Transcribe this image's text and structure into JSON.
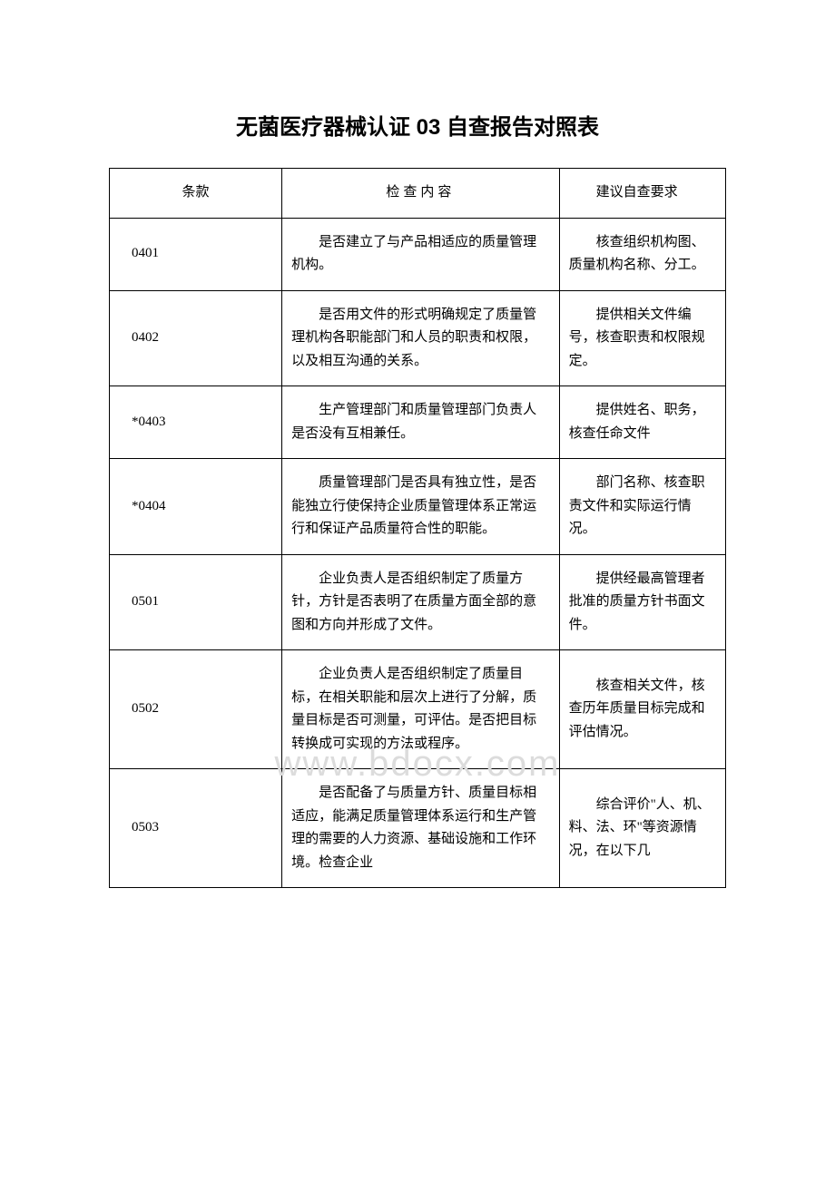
{
  "title": "无菌医疗器械认证 03 自查报告对照表",
  "watermark": "www.bdocx.com",
  "table": {
    "headers": {
      "clause": "条款",
      "content": "检查内容",
      "requirement": "建议自查要求"
    },
    "rows": [
      {
        "clause": "0401",
        "content": "是否建立了与产品相适应的质量管理机构。",
        "requirement": "核查组织机构图、质量机构名称、分工。"
      },
      {
        "clause": "0402",
        "content": "是否用文件的形式明确规定了质量管理机构各职能部门和人员的职责和权限，以及相互沟通的关系。",
        "requirement": "提供相关文件编号，核查职责和权限规定。"
      },
      {
        "clause": "*0403",
        "content": "生产管理部门和质量管理部门负责人是否没有互相兼任。",
        "requirement": "提供姓名、职务，核查任命文件"
      },
      {
        "clause": "*0404",
        "content": "质量管理部门是否具有独立性，是否能独立行使保持企业质量管理体系正常运行和保证产品质量符合性的职能。",
        "requirement": "部门名称、核查职责文件和实际运行情况。"
      },
      {
        "clause": "0501",
        "content": "企业负责人是否组织制定了质量方针，方针是否表明了在质量方面全部的意图和方向并形成了文件。",
        "requirement": "提供经最高管理者批准的质量方针书面文件。"
      },
      {
        "clause": "0502",
        "content": "企业负责人是否组织制定了质量目标，在相关职能和层次上进行了分解，质量目标是否可测量，可评估。是否把目标转换成可实现的方法或程序。",
        "requirement": "核查相关文件，核查历年质量目标完成和评估情况。"
      },
      {
        "clause": "0503",
        "content": "是否配备了与质量方针、质量目标相适应，能满足质量管理体系运行和生产管理的需要的人力资源、基础设施和工作环境。检查企业",
        "requirement": "综合评价\"人、机、料、法、环\"等资源情况，在以下几"
      }
    ]
  },
  "styles": {
    "title_fontsize": 24,
    "cell_fontsize": 15,
    "border_color": "#000000",
    "background_color": "#ffffff",
    "watermark_color": "#dcdcdc",
    "line_height": 1.7
  }
}
